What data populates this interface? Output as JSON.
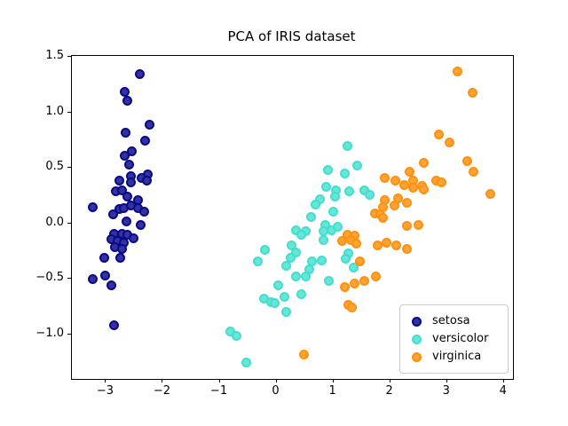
{
  "chart_data": {
    "type": "scatter",
    "title": "PCA of IRIS dataset",
    "xlabel": "",
    "ylabel": "",
    "grid": false,
    "legend_position": "lower right",
    "xlim": [
      -3.6,
      4.16
    ],
    "ylim": [
      -1.4,
      1.51
    ],
    "xticks": {
      "values": [
        -3,
        -2,
        -1,
        0,
        1,
        2,
        3,
        4
      ],
      "labels": [
        "−3",
        "−2",
        "−1",
        "0",
        "1",
        "2",
        "3",
        "4"
      ]
    },
    "yticks": {
      "values": [
        -1.0,
        -0.5,
        0.0,
        0.5,
        1.0,
        1.5
      ],
      "labels": [
        "−1.0",
        "−0.5",
        "0.0",
        "0.5",
        "1.0",
        "1.5"
      ]
    },
    "series": [
      {
        "name": "setosa",
        "base_color": "navy",
        "fill": "#3232A0",
        "edge": "#0A0A86",
        "points": [
          [
            -2.41,
            1.35
          ],
          [
            -2.67,
            1.19
          ],
          [
            -2.63,
            1.11
          ],
          [
            -2.66,
            0.82
          ],
          [
            -2.24,
            0.89
          ],
          [
            -2.31,
            0.75
          ],
          [
            -2.55,
            0.65
          ],
          [
            -2.67,
            0.61
          ],
          [
            -2.59,
            0.53
          ],
          [
            -2.56,
            0.43
          ],
          [
            -2.26,
            0.44
          ],
          [
            -2.38,
            0.41
          ],
          [
            -2.76,
            0.39
          ],
          [
            -2.56,
            0.37
          ],
          [
            -2.28,
            0.39
          ],
          [
            -2.82,
            0.29
          ],
          [
            -2.72,
            0.3
          ],
          [
            -2.62,
            0.24
          ],
          [
            -2.43,
            0.21
          ],
          [
            -3.24,
            0.15
          ],
          [
            -2.88,
            0.08
          ],
          [
            -2.76,
            0.13
          ],
          [
            -2.69,
            0.14
          ],
          [
            -2.56,
            0.16
          ],
          [
            -2.43,
            0.14
          ],
          [
            -2.32,
            0.11
          ],
          [
            -2.64,
            0.02
          ],
          [
            -2.39,
            -0.01
          ],
          [
            -2.86,
            -0.09
          ],
          [
            -2.72,
            -0.09
          ],
          [
            -2.62,
            -0.1
          ],
          [
            -2.51,
            -0.13
          ],
          [
            -2.91,
            -0.14
          ],
          [
            -2.8,
            -0.16
          ],
          [
            -2.69,
            -0.17
          ],
          [
            -2.85,
            -0.21
          ],
          [
            -2.72,
            -0.23
          ],
          [
            -3.03,
            -0.31
          ],
          [
            -2.75,
            -0.31
          ],
          [
            -3.24,
            -0.5
          ],
          [
            -3.01,
            -0.47
          ],
          [
            -2.91,
            -0.56
          ],
          [
            -2.86,
            -0.92
          ]
        ]
      },
      {
        "name": "versicolor",
        "base_color": "turquoise",
        "fill": "#66E6D9",
        "edge": "#43DECD",
        "points": [
          [
            1.25,
            0.7
          ],
          [
            1.42,
            0.52
          ],
          [
            0.9,
            0.48
          ],
          [
            1.2,
            0.45
          ],
          [
            0.88,
            0.33
          ],
          [
            1.05,
            0.3
          ],
          [
            1.03,
            0.24
          ],
          [
            1.28,
            0.29
          ],
          [
            1.55,
            0.3
          ],
          [
            1.64,
            0.26
          ],
          [
            0.77,
            0.22
          ],
          [
            0.68,
            0.17
          ],
          [
            0.61,
            0.06
          ],
          [
            1.0,
            0.11
          ],
          [
            0.86,
            -0.01
          ],
          [
            0.34,
            -0.06
          ],
          [
            0.51,
            -0.07
          ],
          [
            0.82,
            -0.07
          ],
          [
            0.97,
            -0.06
          ],
          [
            1.08,
            -0.03
          ],
          [
            0.43,
            -0.1
          ],
          [
            0.82,
            -0.15
          ],
          [
            -0.21,
            -0.24
          ],
          [
            0.27,
            -0.2
          ],
          [
            0.34,
            -0.26
          ],
          [
            0.25,
            -0.31
          ],
          [
            0.17,
            -0.38
          ],
          [
            -0.33,
            -0.34
          ],
          [
            0.62,
            -0.34
          ],
          [
            0.79,
            -0.33
          ],
          [
            0.57,
            -0.41
          ],
          [
            1.26,
            -0.27
          ],
          [
            1.21,
            -0.32
          ],
          [
            1.35,
            -0.4
          ],
          [
            0.34,
            -0.48
          ],
          [
            0.52,
            -0.48
          ],
          [
            0.03,
            -0.56
          ],
          [
            0.92,
            -0.52
          ],
          [
            0.14,
            -0.66
          ],
          [
            0.43,
            -0.64
          ],
          [
            -0.22,
            -0.68
          ],
          [
            -0.09,
            -0.71
          ],
          [
            -0.03,
            -0.72
          ],
          [
            0.17,
            -0.8
          ],
          [
            -0.81,
            -0.97
          ],
          [
            -0.7,
            -1.01
          ],
          [
            -0.53,
            -1.25
          ]
        ]
      },
      {
        "name": "virginica",
        "base_color": "darkorange",
        "fill": "#FFA333",
        "edge": "#FF9010",
        "points": [
          [
            3.19,
            1.37
          ],
          [
            3.45,
            1.18
          ],
          [
            2.86,
            0.8
          ],
          [
            3.05,
            0.73
          ],
          [
            3.76,
            0.27
          ],
          [
            3.36,
            0.56
          ],
          [
            3.47,
            0.47
          ],
          [
            2.59,
            0.55
          ],
          [
            2.34,
            0.47
          ],
          [
            1.9,
            0.41
          ],
          [
            2.09,
            0.39
          ],
          [
            2.24,
            0.35
          ],
          [
            2.41,
            0.39
          ],
          [
            2.81,
            0.39
          ],
          [
            2.9,
            0.37
          ],
          [
            2.56,
            0.34
          ],
          [
            2.41,
            0.32
          ],
          [
            2.59,
            0.31
          ],
          [
            2.14,
            0.23
          ],
          [
            2.29,
            0.19
          ],
          [
            1.91,
            0.21
          ],
          [
            2.08,
            0.16
          ],
          [
            1.88,
            0.15
          ],
          [
            1.73,
            0.09
          ],
          [
            1.83,
            0.08
          ],
          [
            1.88,
            0.05
          ],
          [
            2.3,
            -0.02
          ],
          [
            2.5,
            -0.01
          ],
          [
            1.25,
            -0.1
          ],
          [
            1.38,
            -0.11
          ],
          [
            1.16,
            -0.16
          ],
          [
            1.31,
            -0.15
          ],
          [
            1.4,
            -0.18
          ],
          [
            1.78,
            -0.2
          ],
          [
            1.94,
            -0.17
          ],
          [
            2.11,
            -0.2
          ],
          [
            2.29,
            -0.23
          ],
          [
            1.47,
            -0.34
          ],
          [
            1.74,
            -0.48
          ],
          [
            1.55,
            -0.52
          ],
          [
            1.38,
            -0.54
          ],
          [
            1.2,
            -0.57
          ],
          [
            1.26,
            -0.73
          ],
          [
            1.32,
            -0.76
          ],
          [
            0.49,
            -1.18
          ]
        ]
      }
    ]
  }
}
